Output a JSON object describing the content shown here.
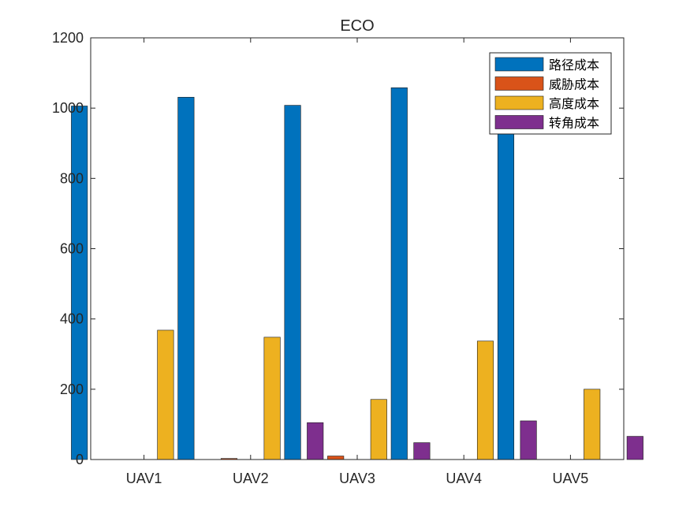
{
  "chart_data": {
    "type": "bar",
    "title": "ECO",
    "xlabel": "",
    "ylabel": "",
    "categories": [
      "UAV1",
      "UAV2",
      "UAV3",
      "UAV4",
      "UAV5"
    ],
    "ylim": [
      0,
      1200
    ],
    "yticks": [
      "0",
      "200",
      "400",
      "600",
      "800",
      "1000",
      "1200"
    ],
    "grid": false,
    "legend_position": "top-right",
    "series": [
      {
        "name": "路径成本",
        "color": "#0072BD",
        "values": [
          1006,
          1031,
          1008,
          1058,
          985
        ]
      },
      {
        "name": "威胁成本",
        "color": "#D95319",
        "values": [
          0,
          3,
          10,
          0,
          0
        ]
      },
      {
        "name": "高度成本",
        "color": "#EDB120",
        "values": [
          368,
          348,
          171,
          337,
          200
        ]
      },
      {
        "name": "转角成本",
        "color": "#7E2F8E",
        "values": [
          0,
          105,
          48,
          110,
          66
        ]
      }
    ]
  }
}
